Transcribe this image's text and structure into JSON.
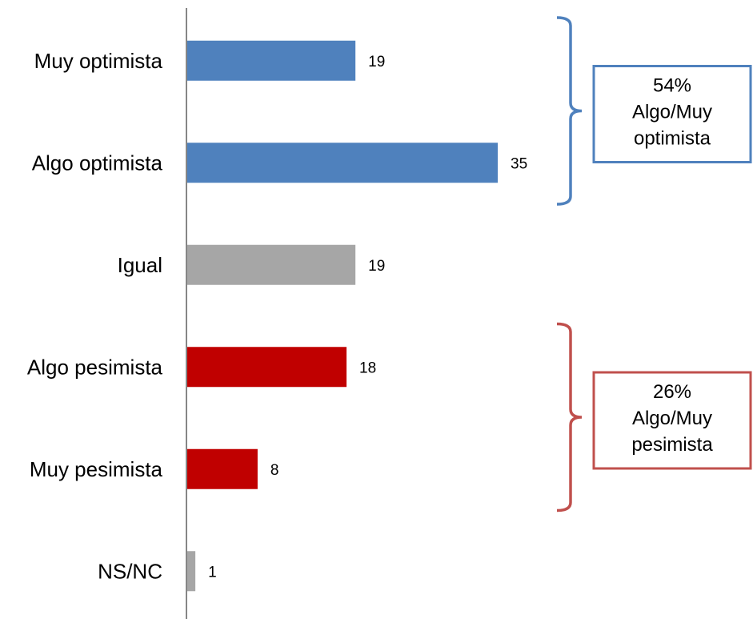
{
  "chart_data": {
    "type": "bar",
    "orientation": "horizontal",
    "categories": [
      "Muy optimista",
      "Algo optimista",
      "Igual",
      "Algo pesimista",
      "Muy pesimista",
      "NS/NC"
    ],
    "values": [
      19,
      35,
      19,
      18,
      8,
      1
    ],
    "bar_colors": [
      "#4f81bd",
      "#4f81bd",
      "#a6a6a6",
      "#c00000",
      "#c00000",
      "#a6a6a6"
    ],
    "xlim": [
      0,
      35
    ],
    "title": "",
    "xlabel": "",
    "ylabel": "",
    "grid": false,
    "legend": "none",
    "annotations": [
      {
        "name": "optimista-group",
        "covers": [
          "Muy optimista",
          "Algo optimista"
        ],
        "lines": [
          "54%",
          "Algo/Muy",
          "optimista"
        ],
        "color": "#4f81bd"
      },
      {
        "name": "pesimista-group",
        "covers": [
          "Algo pesimista",
          "Muy pesimista"
        ],
        "lines": [
          "26%",
          "Algo/Muy",
          "pesimista"
        ],
        "color": "#c0504d"
      }
    ]
  }
}
